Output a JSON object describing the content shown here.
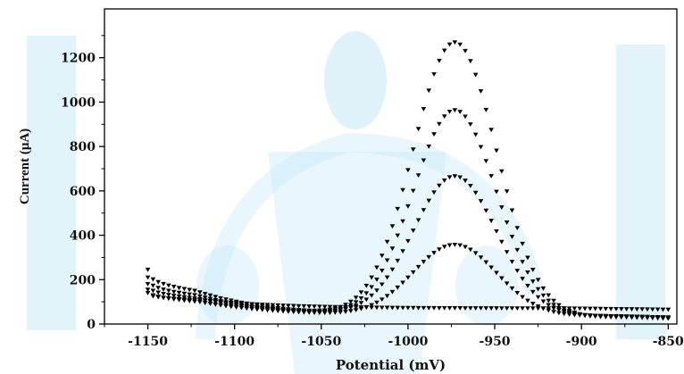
{
  "chart_data": {
    "type": "scatter",
    "title": "",
    "xlabel": "Potential (mV)",
    "ylabel": "Current (μA)",
    "xlim": [
      -1175,
      -845
    ],
    "ylim": [
      0,
      1420
    ],
    "x_ticks": [
      -1150,
      -1100,
      -1050,
      -1000,
      -950,
      -900,
      -850
    ],
    "y_ticks": [
      0,
      200,
      400,
      600,
      800,
      1000,
      1200
    ],
    "x_tick_labels": [
      "-1150",
      "-1100",
      "-1050",
      "-1000",
      "-950",
      "-900",
      "-850"
    ],
    "y_tick_labels": [
      "0",
      "200",
      "400",
      "600",
      "800",
      "1000",
      "1200"
    ],
    "grid": false,
    "legend": "none",
    "marker": "triangle-down",
    "marker_color": "#000000",
    "x_range": [
      -1150,
      -850
    ],
    "x_step": 3,
    "series": [
      {
        "peak_x": -973,
        "peak_height": 0,
        "baseline_start": 140,
        "baseline_end": 65
      },
      {
        "peak_x": -973,
        "peak_height": 320,
        "baseline_start": 155,
        "baseline_end": 30
      },
      {
        "peak_x": -973,
        "peak_height": 628,
        "baseline_start": 180,
        "baseline_end": 30
      },
      {
        "peak_x": -973,
        "peak_height": 930,
        "baseline_start": 210,
        "baseline_end": 25
      },
      {
        "peak_x": -973,
        "peak_height": 1235,
        "baseline_start": 245,
        "baseline_end": 25
      }
    ],
    "peak_values": [
      70,
      395,
      698,
      998,
      1305
    ],
    "watermark_color": "#bfe6f5"
  }
}
